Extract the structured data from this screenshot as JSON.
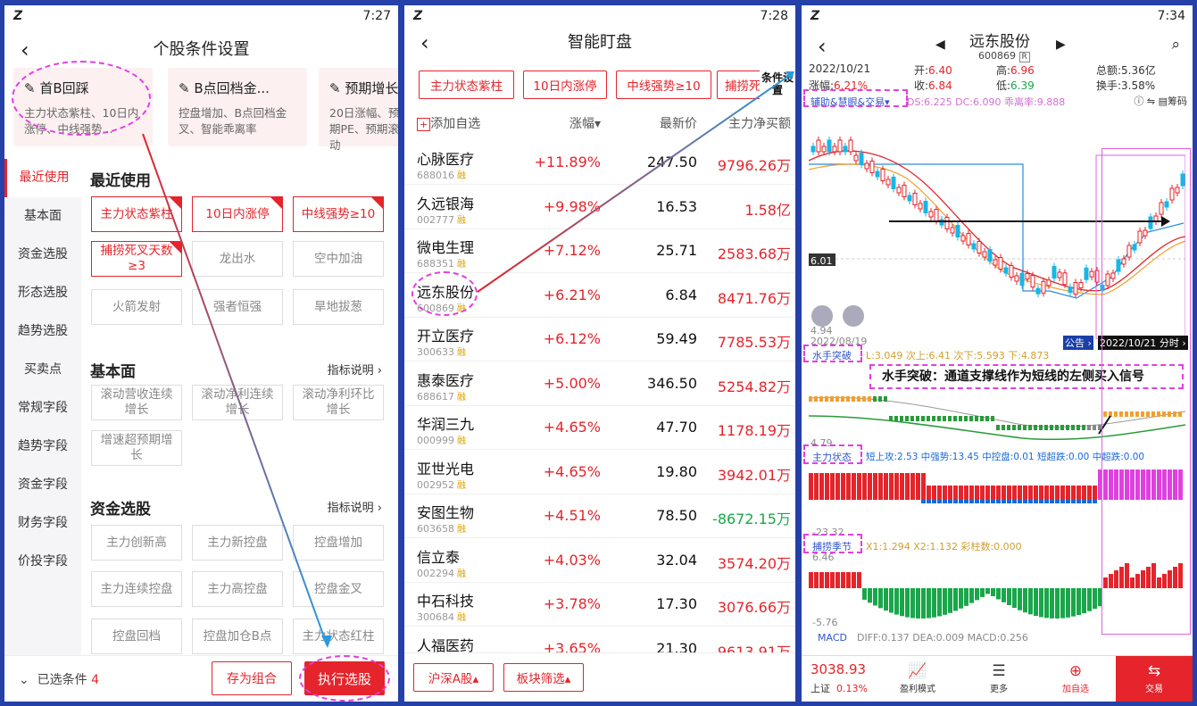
{
  "status_bar": {
    "p1_time": "7:27",
    "p2_time": "7:28",
    "p3_time": "7:34"
  },
  "p1": {
    "title": "个股条件设置",
    "cards": [
      {
        "title": "首B回踩",
        "desc": "主力状态紫柱、10日内涨停、中线强势..."
      },
      {
        "title": "B点回档金...",
        "desc": "控盘增加、B点回档金叉、智能乖离率"
      },
      {
        "title": "预期增长",
        "desc": "20日涨幅、预期PE、预期滚动"
      }
    ],
    "nav": [
      "最近使用",
      "基本面",
      "资金选股",
      "形态选股",
      "趋势选股",
      "买卖点",
      "常规字段",
      "趋势字段",
      "资金字段",
      "财务字段",
      "价投字段"
    ],
    "sec_recent": "最近使用",
    "recent_chips": [
      "主力状态紫柱",
      "10日内涨停",
      "中线强势≥10",
      "捕捞死叉天数≥3",
      "龙出水",
      "空中加油",
      "火箭发射",
      "强者恒强",
      "旱地拔葱"
    ],
    "sec_basic": "基本面",
    "basic_more": "指标说明 ›",
    "basic_chips": [
      "滚动营收连续增长",
      "滚动净利连续增长",
      "滚动净利环比增长",
      "增速超预期增长"
    ],
    "sec_fund": "资金选股",
    "fund_more": "指标说明 ›",
    "fund_chips": [
      "主力创新高",
      "主力新控盘",
      "控盘增加",
      "主力连续控盘",
      "主力高控盘",
      "控盘金叉",
      "控盘回档",
      "控盘加仓B点",
      "主力状态红柱"
    ],
    "selected_label": "已选条件",
    "selected_count": "4",
    "save_btn": "存为组合",
    "run_btn": "执行选股"
  },
  "p2": {
    "title": "智能盯盘",
    "tags": [
      "主力状态紫柱",
      "10日内涨停",
      "中线强势≥10",
      "捕捞死"
    ],
    "cond_badge": "条件设置",
    "add_label": "添加自选",
    "col_change": "涨幅▾",
    "col_price": "最新价",
    "col_flow": "主力净买额",
    "stocks": [
      {
        "name": "心脉医疗",
        "code": "688016",
        "change": "+11.89%",
        "price": "247.50",
        "flow": "9796.26万"
      },
      {
        "name": "久远银海",
        "code": "002777",
        "change": "+9.98%",
        "price": "16.53",
        "flow": "1.58亿"
      },
      {
        "name": "微电生理",
        "code": "688351",
        "change": "+7.12%",
        "price": "25.71",
        "flow": "2583.68万"
      },
      {
        "name": "远东股份",
        "code": "600869",
        "change": "+6.21%",
        "price": "6.84",
        "flow": "8471.76万"
      },
      {
        "name": "开立医疗",
        "code": "300633",
        "change": "+6.12%",
        "price": "59.49",
        "flow": "7785.53万"
      },
      {
        "name": "惠泰医疗",
        "code": "688617",
        "change": "+5.00%",
        "price": "346.50",
        "flow": "5254.82万"
      },
      {
        "name": "华润三九",
        "code": "000999",
        "change": "+4.65%",
        "price": "47.70",
        "flow": "1178.19万"
      },
      {
        "name": "亚世光电",
        "code": "002952",
        "change": "+4.65%",
        "price": "19.80",
        "flow": "3942.01万"
      },
      {
        "name": "安图生物",
        "code": "603658",
        "change": "+4.51%",
        "price": "78.50",
        "flow": "-8672.15万"
      },
      {
        "name": "信立泰",
        "code": "002294",
        "change": "+4.03%",
        "price": "32.04",
        "flow": "3574.20万"
      },
      {
        "name": "中石科技",
        "code": "300684",
        "change": "+3.78%",
        "price": "17.30",
        "flow": "3076.66万"
      },
      {
        "name": "人福医药",
        "code": "600079",
        "change": "+3.65%",
        "price": "21.30",
        "flow": "9613.91万"
      }
    ],
    "rong": "融",
    "market_btn": "沪深A股▴",
    "sector_btn": "板块筛选▴"
  },
  "p3": {
    "title": "远东股份",
    "code": "600869",
    "r": "R",
    "date": "2022/10/21",
    "chg_pct": "6.21%",
    "open_l": "开:",
    "open": "6.40",
    "high_l": "高:",
    "high": "6.96",
    "amt_l": "总额:",
    "amt": "5.36亿",
    "close_l": "收:",
    "close": "6.84",
    "low_l": "低:",
    "low": "6.39",
    "turn_l": "换手:",
    "turn": "3.58%",
    "zf_l": "涨幅:",
    "ind1": "辅助&慧眼&交易▾",
    "ds": "DS:6.225 DC:6.090 乖离率:9.888",
    "chips_lbl": "筹码",
    "price_line": "6.01",
    "low_tick": "4.94",
    "date_l": "2022/08/19",
    "date_r": "2022/10/21 分时 ›",
    "notice": "公告 ›",
    "ind2": "水手突破",
    "ind2_vals": "L:3.049 次上:6.41 次下:5.593 下:4.873",
    "annotation": "水手突破：通道支撑线作为短线的左侧买入信号",
    "tick_479": "4.79",
    "ind3": "主力状态",
    "ind3_vals": "短上攻:2.53 中强势:13.45 中控盘:0.01 短超跌:0.00 中超跌:0.00",
    "tick_2332": "-23.32",
    "ind4": "捕捞季节",
    "ind4_vals": "X1:1.294 X2:1.132 彩柱数:0.000",
    "tick_646": "6.46",
    "tick_576": "-5.76",
    "ind5": "MACD",
    "ind5_vals": "DIFF:0.137 DEA:0.009 MACD:0.256",
    "index_val": "3038.93",
    "index_name": "上证",
    "index_chg": "0.13%",
    "nav": [
      {
        "icon": "📈",
        "label": "盈利模式"
      },
      {
        "icon": "☰",
        "label": "更多"
      },
      {
        "icon": "⊕",
        "label": "加自选"
      },
      {
        "icon": "⇆",
        "label": "交易"
      }
    ]
  },
  "colors": {
    "red": "#e5242b",
    "green": "#1aa64a",
    "accent": "#e040e0",
    "bg": "#2540a8"
  }
}
